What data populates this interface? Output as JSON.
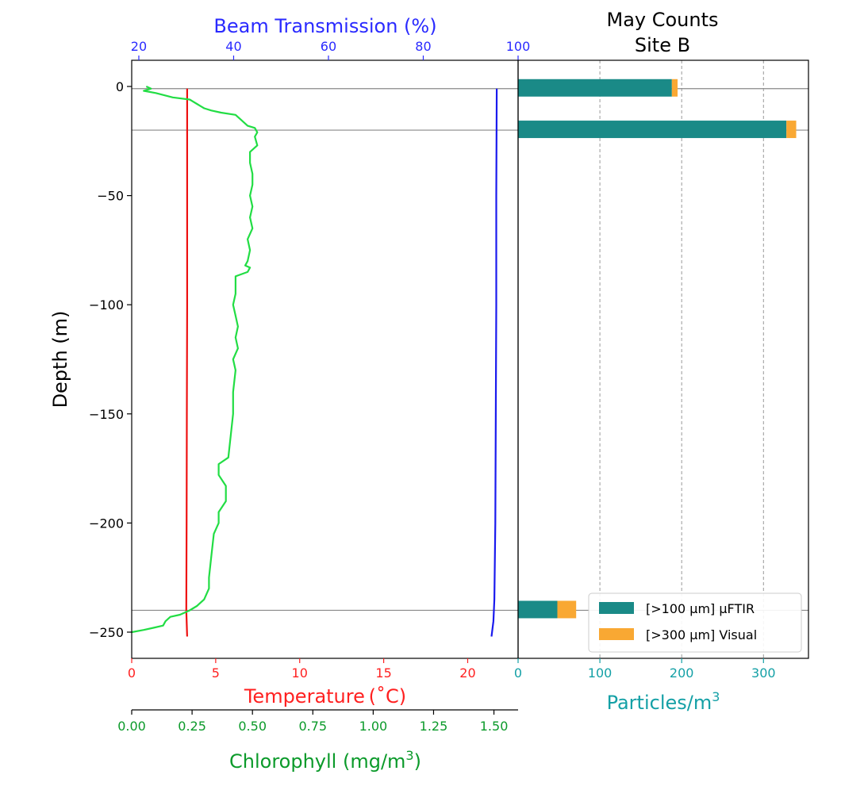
{
  "chart_data": [
    {
      "type": "line",
      "title": "",
      "ylabel": "Depth (m)",
      "ylim": [
        -262,
        12
      ],
      "yticks": [
        0,
        -50,
        -100,
        -150,
        -200,
        -250
      ],
      "hlines": [
        -1,
        -20,
        -240
      ],
      "axes": {
        "temperature": {
          "label": "Temperature (˚C)",
          "color": "#ff2020",
          "xlim": [
            0,
            23
          ],
          "ticks": [
            0,
            5,
            10,
            15,
            20
          ]
        },
        "beam": {
          "label": "Beam Transmission (%)",
          "color": "#2a2aff",
          "xlim": [
            18.5,
            100
          ],
          "ticks": [
            20,
            40,
            60,
            80,
            100
          ]
        },
        "chlorophyll": {
          "label_main": "Chlorophyll (mg/m",
          "label_sup": "3",
          "label_end": ")",
          "color": "#0b9a2a",
          "xlim": [
            0,
            1.6
          ],
          "ticks": [
            0.0,
            0.25,
            0.5,
            0.75,
            1.0,
            1.25,
            1.5
          ],
          "tick_labels": [
            "0.00",
            "0.25",
            "0.50",
            "0.75",
            "1.00",
            "1.25",
            "1.50"
          ]
        }
      },
      "series": [
        {
          "axis": "temperature",
          "color": "#ee1111",
          "points": [
            [
              3.3,
              -1
            ],
            [
              3.3,
              -50
            ],
            [
              3.3,
              -100
            ],
            [
              3.28,
              -150
            ],
            [
              3.27,
              -200
            ],
            [
              3.25,
              -240
            ],
            [
              3.3,
              -252
            ]
          ]
        },
        {
          "axis": "beam",
          "color": "#1a1aee",
          "points": [
            [
              95.5,
              -1
            ],
            [
              95.4,
              -50
            ],
            [
              95.4,
              -100
            ],
            [
              95.3,
              -150
            ],
            [
              95.2,
              -200
            ],
            [
              95.0,
              -235
            ],
            [
              94.8,
              -245
            ],
            [
              94.4,
              -252
            ]
          ]
        },
        {
          "axis": "chlorophyll",
          "color": "#22dd44",
          "points": [
            [
              0.06,
              0
            ],
            [
              0.08,
              -1
            ],
            [
              0.05,
              -2
            ],
            [
              0.1,
              -3
            ],
            [
              0.17,
              -5
            ],
            [
              0.24,
              -6
            ],
            [
              0.27,
              -8
            ],
            [
              0.3,
              -10
            ],
            [
              0.33,
              -11
            ],
            [
              0.37,
              -12
            ],
            [
              0.43,
              -13
            ],
            [
              0.45,
              -15
            ],
            [
              0.48,
              -18
            ],
            [
              0.51,
              -19
            ],
            [
              0.52,
              -21
            ],
            [
              0.51,
              -23
            ],
            [
              0.52,
              -27
            ],
            [
              0.49,
              -30
            ],
            [
              0.49,
              -35
            ],
            [
              0.5,
              -40
            ],
            [
              0.5,
              -45
            ],
            [
              0.49,
              -50
            ],
            [
              0.5,
              -55
            ],
            [
              0.49,
              -60
            ],
            [
              0.5,
              -65
            ],
            [
              0.48,
              -70
            ],
            [
              0.49,
              -75
            ],
            [
              0.48,
              -80
            ],
            [
              0.47,
              -82
            ],
            [
              0.49,
              -83
            ],
            [
              0.48,
              -85
            ],
            [
              0.43,
              -87
            ],
            [
              0.43,
              -95
            ],
            [
              0.42,
              -100
            ],
            [
              0.43,
              -105
            ],
            [
              0.44,
              -110
            ],
            [
              0.43,
              -115
            ],
            [
              0.44,
              -120
            ],
            [
              0.42,
              -125
            ],
            [
              0.43,
              -130
            ],
            [
              0.42,
              -140
            ],
            [
              0.42,
              -150
            ],
            [
              0.41,
              -160
            ],
            [
              0.4,
              -170
            ],
            [
              0.36,
              -173
            ],
            [
              0.36,
              -178
            ],
            [
              0.39,
              -183
            ],
            [
              0.39,
              -190
            ],
            [
              0.36,
              -195
            ],
            [
              0.36,
              -200
            ],
            [
              0.34,
              -205
            ],
            [
              0.33,
              -215
            ],
            [
              0.32,
              -225
            ],
            [
              0.32,
              -230
            ],
            [
              0.3,
              -235
            ],
            [
              0.27,
              -238
            ],
            [
              0.24,
              -240
            ],
            [
              0.2,
              -242
            ],
            [
              0.16,
              -243
            ],
            [
              0.14,
              -245
            ],
            [
              0.13,
              -247
            ],
            [
              0.09,
              -248
            ],
            [
              0.05,
              -249
            ],
            [
              0.0,
              -250
            ]
          ]
        }
      ]
    },
    {
      "type": "bar",
      "orientation": "horizontal",
      "stacked": true,
      "title_line1": "May Counts",
      "title_line2": "Site B",
      "xlabel_main": "Particles/m",
      "xlabel_sup": "3",
      "xlabel_color": "#14a0a6",
      "xlim": [
        0,
        355
      ],
      "xticks": [
        0,
        100,
        200,
        300
      ],
      "grid": "vertical-dashed",
      "legend_position": "lower-right",
      "bars_depth": [
        -1,
        -20,
        -240
      ],
      "series": [
        {
          "name": "[>100 μm] μFTIR",
          "color": "#1a8a87",
          "values": [
            188,
            328,
            48
          ]
        },
        {
          "name": "[>300 μm] Visual",
          "color": "#f9a833",
          "values": [
            7,
            12,
            23
          ]
        }
      ]
    }
  ]
}
